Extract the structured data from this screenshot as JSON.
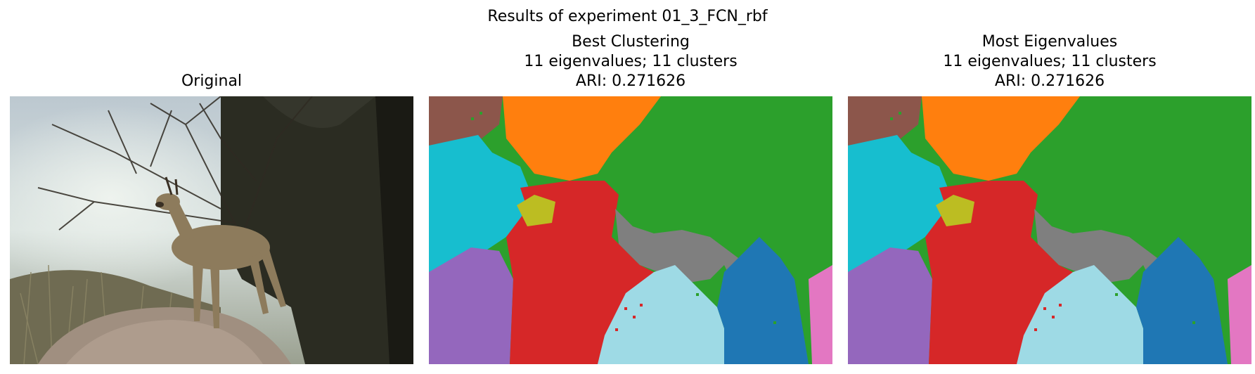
{
  "figure": {
    "suptitle": "Results of experiment 01_3_FCN_rbf"
  },
  "panels": [
    {
      "title_lines": [
        "Original"
      ],
      "image": "photo-klipspringer-on-rock"
    },
    {
      "title_lines": [
        "Best Clustering",
        "11 eigenvalues; 11 clusters",
        "ARI: 0.271626"
      ],
      "image": "segmentation-map"
    },
    {
      "title_lines": [
        "Most Eigenvalues",
        "11 eigenvalues; 11 clusters",
        "ARI: 0.271626"
      ],
      "image": "segmentation-map"
    }
  ],
  "cluster_colors": {
    "brown": "#8c564b",
    "orange": "#ff7f0e",
    "green": "#2ca02c",
    "cyan": "#17becf",
    "red": "#d62728",
    "olive": "#bcbd22",
    "gray": "#7f7f7f",
    "purple": "#9467bd",
    "lightblue": "#9edae5",
    "blue": "#1f77b4",
    "pink": "#e377c2"
  }
}
